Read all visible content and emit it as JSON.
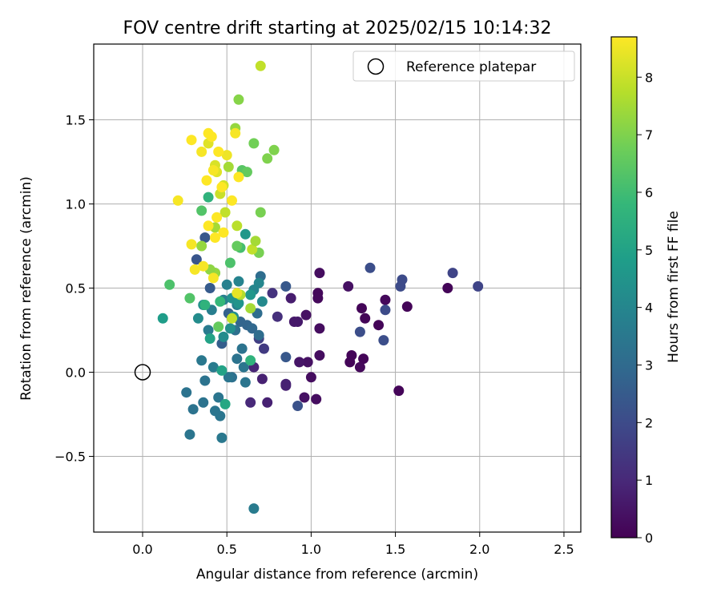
{
  "chart_data": {
    "type": "scatter",
    "title": "FOV centre drift starting at 2025/02/15 10:14:32",
    "xlabel": "Angular distance from reference (arcmin)",
    "ylabel": "Rotation from reference (arcmin)",
    "xlim": [
      -0.29,
      2.6
    ],
    "ylim": [
      -0.95,
      1.95
    ],
    "x_ticks": [
      0.0,
      0.5,
      1.0,
      1.5,
      2.0,
      2.5
    ],
    "x_tick_labels": [
      "0.0",
      "0.5",
      "1.0",
      "1.5",
      "2.0",
      "2.5"
    ],
    "y_ticks": [
      -0.5,
      0.0,
      0.5,
      1.0,
      1.5
    ],
    "y_tick_labels": [
      "−0.5",
      "0.0",
      "0.5",
      "1.0",
      "1.5"
    ],
    "grid": true,
    "legend": {
      "position": "top-right",
      "entries": [
        "Reference platepar"
      ]
    },
    "reference_point": {
      "x": 0.0,
      "y": 0.0,
      "label": "Reference platepar"
    },
    "colorbar": {
      "label": "Hours from first FF file",
      "colormap": "viridis",
      "range": [
        0,
        8.7
      ],
      "ticks": [
        0,
        1,
        2,
        3,
        4,
        5,
        6,
        7,
        8
      ],
      "tick_labels": [
        "0",
        "1",
        "2",
        "3",
        "4",
        "5",
        "6",
        "7",
        "8"
      ],
      "stops": [
        "#440154",
        "#482878",
        "#3e4989",
        "#31688e",
        "#26828e",
        "#1f9e89",
        "#35b779",
        "#6ece58",
        "#b5de2b",
        "#fde725"
      ]
    },
    "series": [
      {
        "points": [
          [
            1.81,
            0.5,
            0.1
          ],
          [
            1.57,
            0.39,
            0.1
          ],
          [
            1.52,
            -0.11,
            0.1
          ],
          [
            1.44,
            0.43,
            0.2
          ],
          [
            1.4,
            0.28,
            0.1
          ],
          [
            1.32,
            0.32,
            0.1
          ],
          [
            1.3,
            0.38,
            0.1
          ],
          [
            1.31,
            0.08,
            0.1
          ],
          [
            1.29,
            0.03,
            0.2
          ],
          [
            1.24,
            0.1,
            0.1
          ],
          [
            1.23,
            0.06,
            0.1
          ],
          [
            1.22,
            0.51,
            0.4
          ],
          [
            1.05,
            0.59,
            0.3
          ],
          [
            1.04,
            0.47,
            0.2
          ],
          [
            1.04,
            0.44,
            0.2
          ],
          [
            1.05,
            0.26,
            0.3
          ],
          [
            1.05,
            0.1,
            0.3
          ],
          [
            1.03,
            -0.16,
            0.3
          ],
          [
            1.0,
            -0.03,
            0.3
          ],
          [
            0.98,
            0.06,
            0.4
          ],
          [
            0.97,
            0.34,
            0.4
          ],
          [
            0.96,
            -0.15,
            0.4
          ],
          [
            0.93,
            0.06,
            0.5
          ],
          [
            0.92,
            0.3,
            0.6
          ],
          [
            0.9,
            0.3,
            0.6
          ],
          [
            0.88,
            0.44,
            0.7
          ],
          [
            0.85,
            -0.07,
            0.8
          ],
          [
            0.85,
            -0.08,
            0.8
          ],
          [
            0.74,
            -0.18,
            0.8
          ],
          [
            0.71,
            -0.04,
            0.8
          ],
          [
            0.66,
            0.03,
            0.9
          ],
          [
            0.64,
            -0.18,
            1.0
          ],
          [
            0.8,
            0.33,
            1.2
          ],
          [
            0.77,
            0.47,
            1.3
          ],
          [
            0.72,
            0.14,
            1.5
          ],
          [
            0.69,
            0.2,
            1.6
          ],
          [
            1.99,
            0.51,
            1.8
          ],
          [
            1.84,
            0.59,
            1.8
          ],
          [
            1.53,
            0.51,
            2.0
          ],
          [
            1.54,
            0.55,
            2.0
          ],
          [
            1.44,
            0.37,
            2.0
          ],
          [
            1.43,
            0.19,
            2.1
          ],
          [
            1.35,
            0.62,
            2.1
          ],
          [
            1.29,
            0.24,
            2.1
          ],
          [
            0.92,
            -0.2,
            2.2
          ],
          [
            0.85,
            0.51,
            2.4
          ],
          [
            0.85,
            0.09,
            2.4
          ],
          [
            0.32,
            0.67,
            2.3
          ],
          [
            0.37,
            0.8,
            2.4
          ],
          [
            0.4,
            0.5,
            2.5
          ],
          [
            0.47,
            0.17,
            2.6
          ],
          [
            0.51,
            0.35,
            2.7
          ],
          [
            0.58,
            0.3,
            2.8
          ],
          [
            0.62,
            0.28,
            2.8
          ],
          [
            0.65,
            0.26,
            2.9
          ],
          [
            0.69,
            0.22,
            3.1
          ],
          [
            0.7,
            0.57,
            3.1
          ],
          [
            0.68,
            0.35,
            3.1
          ],
          [
            0.55,
            0.25,
            3.2
          ],
          [
            0.53,
            -0.03,
            3.2
          ],
          [
            0.56,
            0.08,
            3.3
          ],
          [
            0.59,
            0.14,
            3.3
          ],
          [
            0.6,
            0.03,
            3.4
          ],
          [
            0.61,
            -0.06,
            3.4
          ],
          [
            0.51,
            -0.03,
            3.4
          ],
          [
            0.45,
            -0.15,
            3.4
          ],
          [
            0.46,
            -0.26,
            3.4
          ],
          [
            0.43,
            -0.23,
            3.4
          ],
          [
            0.37,
            -0.05,
            3.3
          ],
          [
            0.36,
            -0.18,
            3.3
          ],
          [
            0.3,
            -0.22,
            3.3
          ],
          [
            0.26,
            -0.12,
            3.3
          ],
          [
            0.28,
            -0.37,
            3.4
          ],
          [
            0.47,
            -0.39,
            3.5
          ],
          [
            0.35,
            0.07,
            3.5
          ],
          [
            0.42,
            0.03,
            3.6
          ],
          [
            0.66,
            -0.81,
            3.6
          ],
          [
            0.39,
            0.25,
            3.6
          ],
          [
            0.41,
            0.37,
            3.7
          ],
          [
            0.48,
            0.43,
            3.7
          ],
          [
            0.5,
            0.52,
            3.8
          ],
          [
            0.56,
            0.4,
            3.8
          ],
          [
            0.57,
            0.54,
            3.9
          ],
          [
            0.66,
            0.49,
            4.0
          ],
          [
            0.69,
            0.53,
            4.0
          ],
          [
            0.71,
            0.42,
            4.1
          ],
          [
            0.48,
            0.21,
            4.2
          ],
          [
            0.52,
            0.26,
            4.3
          ],
          [
            0.33,
            0.32,
            4.2
          ],
          [
            0.36,
            0.4,
            4.3
          ],
          [
            0.54,
            0.33,
            4.3
          ],
          [
            0.53,
            0.44,
            4.4
          ],
          [
            0.57,
            0.41,
            4.5
          ],
          [
            0.61,
            0.82,
            4.6
          ],
          [
            0.64,
            0.46,
            4.6
          ],
          [
            0.12,
            0.32,
            4.8
          ],
          [
            0.47,
            0.01,
            5.0
          ],
          [
            0.49,
            -0.19,
            5.2
          ],
          [
            0.64,
            0.07,
            5.6
          ],
          [
            0.4,
            0.2,
            5.0
          ],
          [
            0.43,
            0.59,
            5.4
          ],
          [
            0.37,
            0.4,
            5.6
          ],
          [
            0.39,
            1.04,
            5.6
          ],
          [
            0.46,
            0.42,
            5.8
          ],
          [
            0.58,
            0.74,
            6.1
          ],
          [
            0.52,
            0.65,
            6.2
          ],
          [
            0.59,
            1.2,
            6.4
          ],
          [
            0.16,
            0.52,
            6.2
          ],
          [
            0.28,
            0.44,
            6.3
          ],
          [
            0.35,
            0.96,
            6.3
          ],
          [
            0.45,
            0.27,
            6.6
          ],
          [
            0.56,
            0.75,
            6.6
          ],
          [
            0.62,
            1.19,
            6.6
          ],
          [
            0.66,
            1.36,
            6.8
          ],
          [
            0.69,
            0.71,
            6.9
          ],
          [
            0.7,
            0.95,
            6.9
          ],
          [
            0.74,
            1.27,
            7.0
          ],
          [
            0.78,
            1.32,
            7.0
          ],
          [
            0.57,
            1.62,
            7.1
          ],
          [
            0.55,
            1.45,
            7.3
          ],
          [
            0.43,
            0.59,
            7.3
          ],
          [
            0.4,
            0.61,
            7.2
          ],
          [
            0.35,
            0.75,
            7.3
          ],
          [
            0.43,
            0.86,
            7.5
          ],
          [
            0.51,
            1.22,
            7.5
          ],
          [
            0.58,
            0.46,
            7.7
          ],
          [
            0.56,
            0.87,
            7.8
          ],
          [
            0.65,
            0.73,
            7.9
          ],
          [
            0.64,
            0.38,
            7.5
          ],
          [
            0.67,
            0.78,
            7.5
          ],
          [
            0.53,
            0.32,
            7.9
          ],
          [
            0.49,
            0.95,
            7.9
          ],
          [
            0.7,
            1.82,
            7.9
          ],
          [
            0.46,
            1.06,
            8.0
          ],
          [
            0.48,
            1.11,
            8.1
          ],
          [
            0.43,
            1.23,
            8.2
          ],
          [
            0.39,
            1.36,
            8.3
          ],
          [
            0.44,
            1.19,
            8.3
          ],
          [
            0.5,
            1.29,
            8.5
          ],
          [
            0.55,
            1.42,
            8.6
          ],
          [
            0.29,
            1.38,
            8.7
          ],
          [
            0.21,
            1.02,
            8.6
          ],
          [
            0.31,
            0.61,
            8.6
          ],
          [
            0.36,
            0.63,
            8.6
          ],
          [
            0.42,
            0.56,
            8.6
          ],
          [
            0.39,
            1.42,
            8.7
          ],
          [
            0.45,
            1.31,
            8.7
          ],
          [
            0.47,
            1.1,
            8.7
          ],
          [
            0.53,
            1.02,
            8.7
          ],
          [
            0.57,
            1.16,
            8.7
          ],
          [
            0.43,
            0.8,
            8.7
          ],
          [
            0.48,
            0.83,
            8.7
          ],
          [
            0.39,
            0.87,
            8.7
          ],
          [
            0.44,
            0.92,
            8.7
          ],
          [
            0.29,
            0.76,
            8.6
          ],
          [
            0.35,
            1.31,
            8.6
          ],
          [
            0.41,
            1.4,
            8.7
          ],
          [
            0.38,
            1.14,
            8.7
          ],
          [
            0.42,
            1.2,
            8.6
          ],
          [
            0.56,
            0.47,
            8.4
          ]
        ]
      }
    ]
  }
}
